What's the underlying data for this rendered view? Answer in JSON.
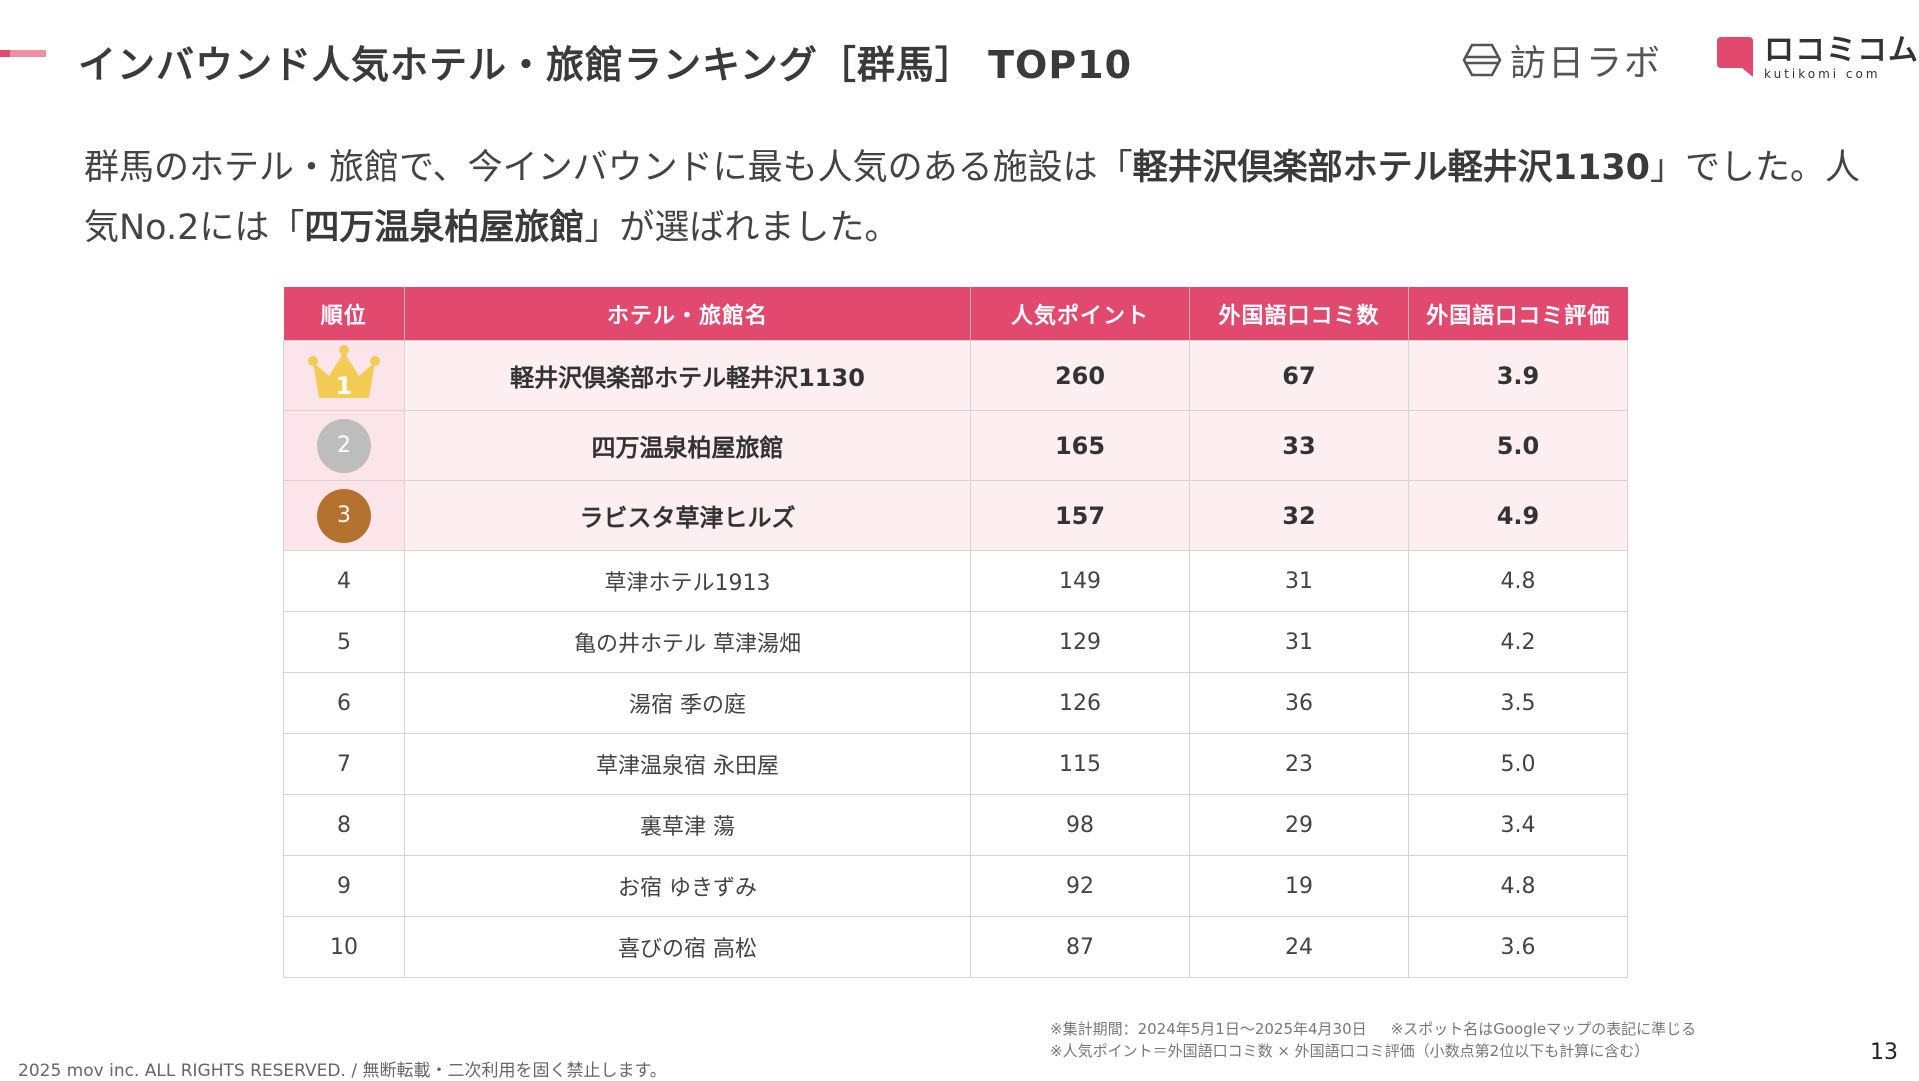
{
  "header": {
    "title": "インバウンド人気ホテル・旅館ランキング［群馬］ TOP10",
    "logo_houjin_text": "訪日ラボ",
    "logo_kuchikomi_text": "ロコミコム",
    "logo_kuchikomi_sub": "kutikomi com"
  },
  "lead": {
    "part1": "群馬のホテル・旅館で、今インバウンドに最も人気のある施設は「",
    "top1_name": "軽井沢倶楽部ホテル軽井沢1130",
    "part2": "」でした。人気No.2には「",
    "top2_name": "四万温泉柏屋旅館",
    "part3": "」が選ばれました。"
  },
  "table": {
    "headers": [
      "順位",
      "ホテル・旅館名",
      "人気ポイント",
      "外国語口コミ数",
      "外国語口コミ評価"
    ],
    "rows": [
      {
        "rank": "1",
        "name": "軽井沢倶楽部ホテル軽井沢1130",
        "points": "260",
        "reviews": "67",
        "rating": "3.9"
      },
      {
        "rank": "2",
        "name": "四万温泉柏屋旅館",
        "points": "165",
        "reviews": "33",
        "rating": "5.0"
      },
      {
        "rank": "3",
        "name": "ラビスタ草津ヒルズ",
        "points": "157",
        "reviews": "32",
        "rating": "4.9"
      },
      {
        "rank": "4",
        "name": "草津ホテル1913",
        "points": "149",
        "reviews": "31",
        "rating": "4.8"
      },
      {
        "rank": "5",
        "name": "亀の井ホテル 草津湯畑",
        "points": "129",
        "reviews": "31",
        "rating": "4.2"
      },
      {
        "rank": "6",
        "name": "湯宿 季の庭",
        "points": "126",
        "reviews": "36",
        "rating": "3.5"
      },
      {
        "rank": "7",
        "name": "草津温泉宿 永田屋",
        "points": "115",
        "reviews": "23",
        "rating": "5.0"
      },
      {
        "rank": "8",
        "name": "裏草津 蕩",
        "points": "98",
        "reviews": "29",
        "rating": "3.4"
      },
      {
        "rank": "9",
        "name": "お宿 ゆきずみ",
        "points": "92",
        "reviews": "19",
        "rating": "4.8"
      },
      {
        "rank": "10",
        "name": "喜びの宿 高松",
        "points": "87",
        "reviews": "24",
        "rating": "3.6"
      }
    ]
  },
  "notes": {
    "period": "※集計期間：2024年5月1日〜2025年4月30日",
    "spot_name": "※スポット名はGoogleマップの表記に準じる",
    "points_formula": "※人気ポイント＝外国語口コミ数 × 外国語口コミ評価（小数点第2位以下も計算に含む）"
  },
  "footer": {
    "copyright": "2025 mov inc. ALL RIGHTS RESERVED. / 無断転載・二次利用を固く禁止します。",
    "page_number": "13"
  },
  "colors": {
    "accent": "#e2496f",
    "top_row_bg": "#fdeef2",
    "gold": "#f3cc55",
    "silver": "#bdbdbd",
    "bronze": "#b5722f"
  },
  "icons": {
    "rank1": "crown-icon",
    "rank2": "silver-medal-icon",
    "rank3": "bronze-medal-icon"
  }
}
